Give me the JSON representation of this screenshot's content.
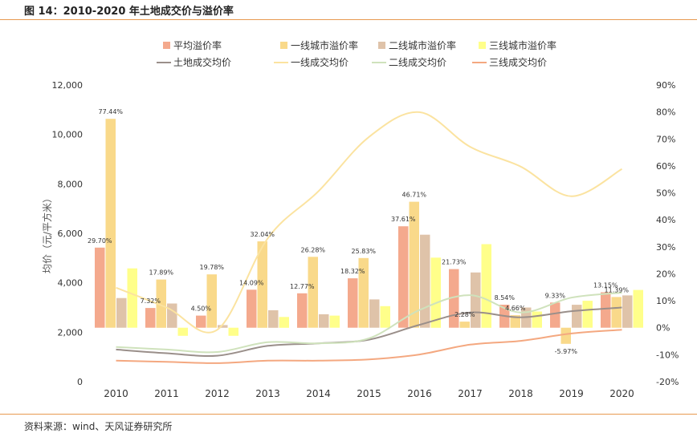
{
  "header": {
    "title": "图 14：2010-2020 年土地成交价与溢价率"
  },
  "footer": {
    "source": "资料来源：wind、天风证券研究所"
  },
  "colors": {
    "avg_premium": "#f4a98d",
    "tier1_premium": "#f9d98a",
    "tier2_premium": "#dfc3a9",
    "tier3_premium": "#ffff8a",
    "land_price": "#9a8f8a",
    "tier1_price": "#fbe3a0",
    "tier2_price": "#cfe2bc",
    "tier3_price": "#f4a880",
    "header_rule": "#e89a50"
  },
  "chart_data": {
    "type": "bar",
    "categories": [
      "2010",
      "2011",
      "2012",
      "2013",
      "2014",
      "2015",
      "2016",
      "2017",
      "2018",
      "2019",
      "2020"
    ],
    "ylabel": "均价（元/平方米）",
    "ylim": [
      0,
      12000
    ],
    "y_ticks": [
      "0",
      "2,000",
      "4,000",
      "6,000",
      "8,000",
      "10,000",
      "12,000"
    ],
    "y2lim": [
      -20,
      90
    ],
    "y2_ticks": [
      "-20%",
      "-10%",
      "0%",
      "10%",
      "20%",
      "30%",
      "40%",
      "50%",
      "60%",
      "70%",
      "80%",
      "90%"
    ],
    "grid": false,
    "legend_position": "top",
    "bar_series": [
      {
        "name": "平均溢价率",
        "values": [
          29.7,
          7.32,
          4.5,
          14.09,
          12.77,
          18.32,
          37.61,
          21.73,
          8.54,
          9.33,
          13.15
        ]
      },
      {
        "name": "一线城市溢价率",
        "values": [
          77.44,
          17.89,
          19.78,
          32.04,
          26.28,
          25.83,
          46.71,
          2.28,
          4.66,
          -5.97,
          11.39
        ]
      },
      {
        "name": "二线城市溢价率",
        "values": [
          11.0,
          9.0,
          1.0,
          6.5,
          5.0,
          10.5,
          34.5,
          20.5,
          7.5,
          8.5,
          12.0
        ]
      },
      {
        "name": "三线城市溢价率",
        "values": [
          22.0,
          -3.0,
          -3.0,
          4.0,
          4.5,
          8.0,
          26.0,
          31.0,
          6.0,
          10.0,
          14.0
        ]
      }
    ],
    "bar_labels": [
      {
        "series": 0,
        "labels": [
          "29.70%",
          "7.32%",
          "4.50%",
          "14.09%",
          "12.77%",
          "18.32%",
          "37.61%",
          "21.73%",
          "8.54%",
          "9.33%",
          "13.15%"
        ]
      },
      {
        "series": 1,
        "labels": [
          "77.44%",
          "17.89%",
          "19.78%",
          "32.04%",
          "26.28%",
          "25.83%",
          "46.71%",
          "2.28%",
          "4.66%",
          "-5.97%",
          "11.39%"
        ]
      }
    ],
    "line_series": [
      {
        "name": "土地成交均价",
        "values": [
          1300,
          1150,
          1050,
          1450,
          1550,
          1700,
          2300,
          2800,
          2600,
          2850,
          3000
        ]
      },
      {
        "name": "一线成交均价",
        "values": [
          3800,
          3000,
          2100,
          5800,
          7700,
          9900,
          10900,
          9500,
          8700,
          7500,
          8600
        ]
      },
      {
        "name": "二线成交均价",
        "values": [
          1400,
          1300,
          1200,
          1600,
          1550,
          1750,
          2900,
          3500,
          2800,
          3400,
          3600
        ]
      },
      {
        "name": "三线成交均价",
        "values": [
          850,
          800,
          750,
          850,
          850,
          900,
          1100,
          1500,
          1650,
          1950,
          2100
        ]
      }
    ]
  }
}
